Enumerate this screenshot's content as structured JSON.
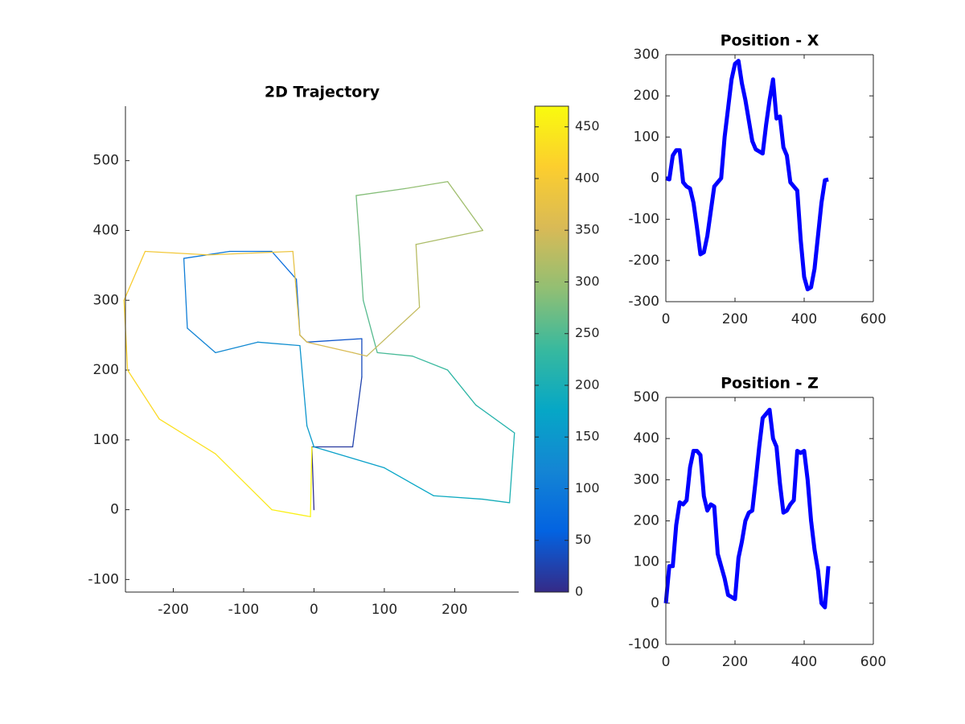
{
  "chart_data": [
    {
      "type": "trajectory",
      "title": "2D Trajectory",
      "x": [
        0,
        -3,
        55,
        68,
        68,
        -10,
        -20,
        -25,
        -60,
        -120,
        -185,
        -180,
        -140,
        -80,
        -20,
        -10,
        0,
        100,
        170,
        240,
        278,
        285,
        230,
        190,
        140,
        90,
        70,
        65,
        60,
        130,
        190,
        240,
        145,
        150,
        75,
        55,
        -10,
        -20,
        -30,
        -150,
        -240,
        -270,
        -265,
        -220,
        -140,
        -60,
        -5,
        -3
      ],
      "y": [
        0,
        90,
        90,
        190,
        245,
        240,
        250,
        330,
        370,
        370,
        360,
        260,
        225,
        240,
        235,
        120,
        90,
        60,
        20,
        15,
        10,
        110,
        150,
        200,
        220,
        225,
        300,
        380,
        450,
        460,
        470,
        400,
        380,
        290,
        220,
        225,
        240,
        250,
        370,
        365,
        370,
        300,
        200,
        130,
        80,
        0,
        -10,
        90
      ],
      "color_values": [
        0,
        10,
        20,
        30,
        40,
        50,
        60,
        70,
        80,
        90,
        100,
        110,
        120,
        130,
        140,
        150,
        160,
        170,
        180,
        190,
        200,
        210,
        220,
        230,
        240,
        250,
        260,
        270,
        280,
        290,
        300,
        310,
        320,
        330,
        340,
        350,
        360,
        370,
        380,
        390,
        400,
        410,
        420,
        430,
        440,
        450,
        460,
        470
      ],
      "colormap": [
        "#352a87",
        "#0363e1",
        "#1485d4",
        "#06a7c6",
        "#38b99e",
        "#92bf73",
        "#d9ba56",
        "#fcce2e",
        "#f9fb0e"
      ],
      "clim": [
        0,
        470
      ],
      "colorbar_ticks": [
        0,
        50,
        100,
        150,
        200,
        250,
        300,
        350,
        400,
        450
      ],
      "xlim": [
        -268,
        291
      ],
      "xticks": [
        -200,
        -100,
        0,
        100,
        200
      ],
      "ylim": [
        -118,
        578
      ],
      "yticks": [
        -100,
        0,
        100,
        200,
        300,
        400,
        500
      ],
      "box": false
    },
    {
      "type": "line",
      "title": "Position - X",
      "color": "#0000ff",
      "x": [
        0,
        10,
        20,
        30,
        40,
        50,
        60,
        70,
        80,
        90,
        100,
        110,
        120,
        130,
        140,
        150,
        160,
        170,
        180,
        190,
        200,
        210,
        220,
        230,
        240,
        250,
        260,
        270,
        280,
        290,
        300,
        310,
        320,
        330,
        340,
        350,
        360,
        370,
        380,
        390,
        400,
        410,
        420,
        430,
        440,
        450,
        460,
        470
      ],
      "values": [
        0,
        -3,
        55,
        68,
        68,
        -10,
        -20,
        -25,
        -60,
        -120,
        -185,
        -180,
        -140,
        -80,
        -20,
        -10,
        0,
        100,
        170,
        240,
        278,
        285,
        230,
        190,
        140,
        90,
        70,
        65,
        60,
        130,
        190,
        240,
        145,
        150,
        75,
        55,
        -10,
        -20,
        -30,
        -150,
        -240,
        -270,
        -265,
        -220,
        -140,
        -60,
        -5,
        -3
      ],
      "xlim": [
        0,
        600
      ],
      "xticks": [
        0,
        200,
        400,
        600
      ],
      "ylim": [
        -300,
        300
      ],
      "yticks": [
        -300,
        -200,
        -100,
        0,
        100,
        200,
        300
      ],
      "box": true
    },
    {
      "type": "line",
      "title": "Position - Z",
      "color": "#0000ff",
      "x": [
        0,
        10,
        20,
        30,
        40,
        50,
        60,
        70,
        80,
        90,
        100,
        110,
        120,
        130,
        140,
        150,
        160,
        170,
        180,
        190,
        200,
        210,
        220,
        230,
        240,
        250,
        260,
        270,
        280,
        290,
        300,
        310,
        320,
        330,
        340,
        350,
        360,
        370,
        380,
        390,
        400,
        410,
        420,
        430,
        440,
        450,
        460,
        470
      ],
      "values": [
        0,
        90,
        90,
        190,
        245,
        240,
        250,
        330,
        370,
        370,
        360,
        260,
        225,
        240,
        235,
        120,
        90,
        60,
        20,
        15,
        10,
        110,
        150,
        200,
        220,
        225,
        300,
        380,
        450,
        460,
        470,
        400,
        380,
        290,
        220,
        225,
        240,
        250,
        370,
        365,
        370,
        300,
        200,
        130,
        80,
        0,
        -10,
        90
      ],
      "xlim": [
        0,
        600
      ],
      "xticks": [
        0,
        200,
        400,
        600
      ],
      "ylim": [
        -100,
        500
      ],
      "yticks": [
        -100,
        0,
        100,
        200,
        300,
        400,
        500
      ],
      "box": true
    }
  ]
}
